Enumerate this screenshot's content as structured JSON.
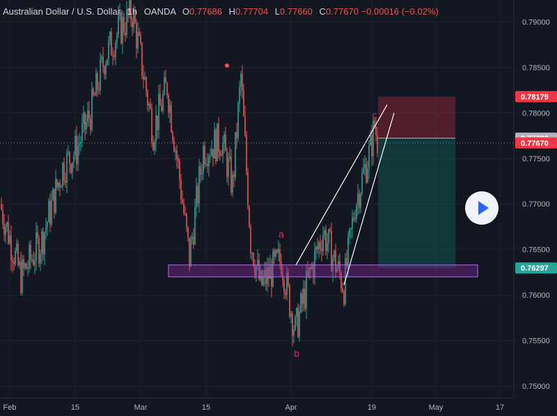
{
  "header": {
    "symbol": "Australian Dollar / U.S. Dollar",
    "interval": "1h",
    "source": "OANDA",
    "o_label": "O",
    "o_value": "0.77686",
    "h_label": "H",
    "h_value": "0.77704",
    "l_label": "L",
    "l_value": "0.77660",
    "c_label": "C",
    "c_value": "0.77670",
    "change": "−0.00016 (−0.02%)"
  },
  "colors": {
    "background": "#131722",
    "up": "#26a69a",
    "down": "#ef5350",
    "wave_label": "#e91e63",
    "support_box": "#9c27b0",
    "stop_zone": "#f23645",
    "target_zone": "#089981"
  },
  "chart_data": {
    "type": "candlestick",
    "ylim": [
      0.7487,
      0.7924
    ],
    "y_ticks": [
      "0.79000",
      "0.78500",
      "0.78000",
      "0.77500",
      "0.77000",
      "0.76500",
      "0.76000",
      "0.75500",
      "0.75000"
    ],
    "x_ticks": [
      "Feb",
      "15",
      "Mar",
      "15",
      "Apr",
      "19",
      "May",
      "17"
    ],
    "price_badges": [
      {
        "label": "0.78179",
        "value": 0.78179,
        "color": "#f23645"
      },
      {
        "label": "0.77723",
        "value": 0.77723,
        "color": "#b2b5be"
      },
      {
        "label": "0.77670",
        "value": 0.7767,
        "color": "#f23645"
      },
      {
        "label": "0.76297",
        "value": 0.76297,
        "color": "#26a69a"
      }
    ],
    "current_price": 0.7767,
    "path": [
      [
        "Feb",
        0.77
      ],
      [
        "",
        0.762
      ],
      [
        "",
        0.766
      ],
      [
        "",
        0.774
      ],
      [
        "",
        0.776
      ],
      [
        "15",
        0.78
      ],
      [
        "",
        0.786
      ],
      [
        "",
        0.789
      ],
      [
        "",
        0.791
      ],
      [
        "",
        0.787
      ],
      [
        "Mar",
        0.778
      ],
      [
        "",
        0.783
      ],
      [
        "",
        0.774
      ],
      [
        "",
        0.764
      ],
      [
        "",
        0.776
      ],
      [
        "15",
        0.777
      ],
      [
        "",
        0.772
      ],
      [
        "",
        0.784
      ],
      [
        "",
        0.766
      ],
      [
        "",
        0.761
      ],
      [
        "Apr",
        0.764
      ],
      [
        "",
        0.756
      ],
      [
        "",
        0.762
      ],
      [
        "",
        0.767
      ],
      [
        "",
        0.761
      ],
      [
        "",
        0.77
      ],
      [
        "19",
        0.776
      ],
      [
        "",
        0.7787
      ],
      [
        "",
        0.7767
      ]
    ],
    "wave_labels": [
      {
        "text": "a",
        "x": "Apr",
        "y": 0.7663
      },
      {
        "text": "b",
        "x": "Apr",
        "y": 0.7532
      },
      {
        "text": "c",
        "x": "19",
        "y": 0.7794
      }
    ],
    "pivot_high": 0.7852,
    "support_zone": [
      0.7623,
      0.763
    ],
    "long_position": {
      "entry": 0.77723,
      "stop": 0.78179,
      "target": 0.76297
    }
  }
}
